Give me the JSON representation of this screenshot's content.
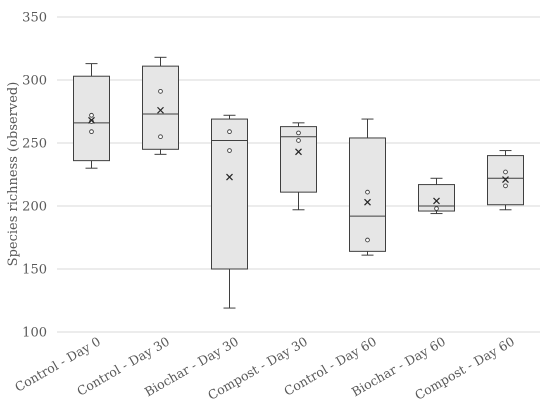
{
  "chart_data": {
    "type": "box",
    "title": "",
    "xlabel": "",
    "ylabel": "Species richness (observed)",
    "ylim": [
      100,
      350
    ],
    "yticks": [
      100,
      150,
      200,
      250,
      300,
      350
    ],
    "grid": true,
    "categories": [
      "Control - Day 0",
      "Control - Day 30",
      "Biochar - Day 30",
      "Compost - Day 30",
      "Control - Day 60",
      "Biochar - Day 60",
      "Compost - Day 60"
    ],
    "boxes": [
      {
        "category": "Control - Day 0",
        "min": 230,
        "q1": 236,
        "median": 266,
        "q3": 303,
        "max": 313,
        "mean": 268,
        "points": [
          272,
          267,
          259
        ]
      },
      {
        "category": "Control - Day 30",
        "min": 241,
        "q1": 245,
        "median": 273,
        "q3": 311,
        "max": 318,
        "mean": 276,
        "points": [
          291,
          255
        ]
      },
      {
        "category": "Biochar - Day 30",
        "min": 119,
        "q1": 150,
        "median": 252,
        "q3": 269,
        "max": 272,
        "mean": 223,
        "points": [
          259,
          244
        ]
      },
      {
        "category": "Compost - Day 30",
        "min": 197,
        "q1": 211,
        "median": 255,
        "q3": 263,
        "max": 266,
        "mean": 243,
        "points": [
          258,
          252
        ]
      },
      {
        "category": "Control - Day 60",
        "min": 161,
        "q1": 164,
        "median": 192,
        "q3": 254,
        "max": 269,
        "mean": 203,
        "points": [
          211,
          173
        ]
      },
      {
        "category": "Biochar - Day 60",
        "min": 194,
        "q1": 196,
        "median": 200,
        "q3": 217,
        "max": 222,
        "mean": 204,
        "points": [
          198
        ]
      },
      {
        "category": "Compost - Day 60",
        "min": 197,
        "q1": 201,
        "median": 222,
        "q3": 240,
        "max": 244,
        "mean": 221,
        "points": [
          227,
          216
        ]
      }
    ]
  }
}
